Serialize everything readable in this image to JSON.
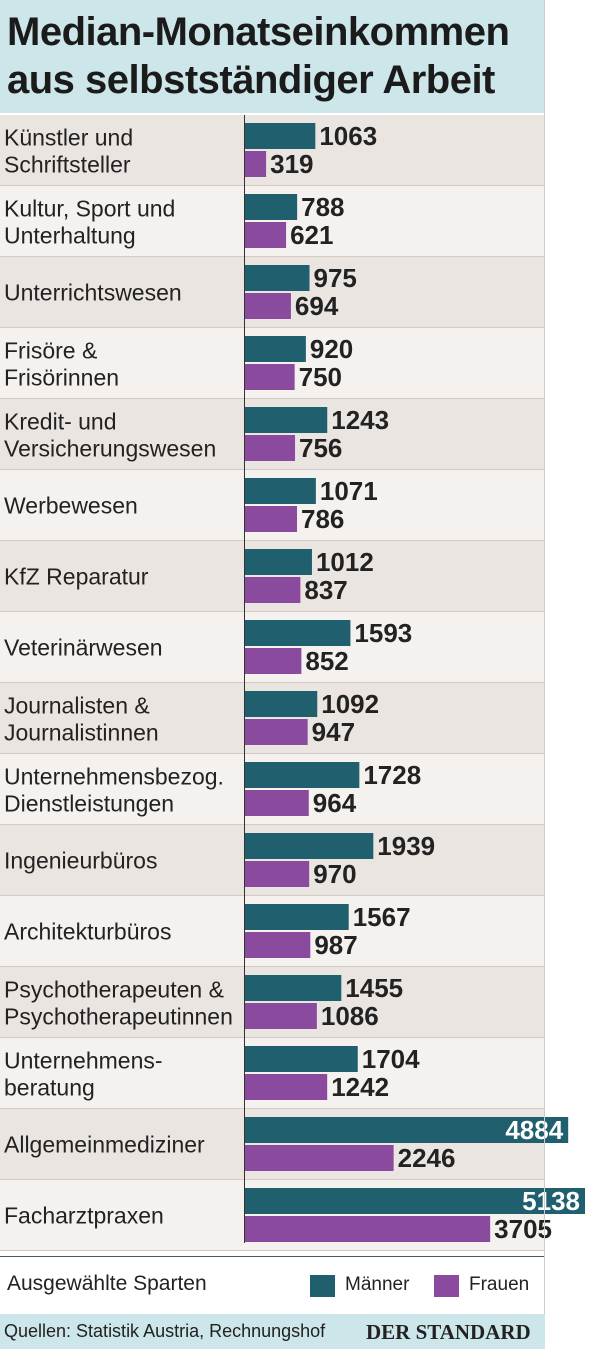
{
  "header": {
    "title_line1": "Median-Monatseinkommen",
    "title_line2": "aus selbstständiger Arbeit"
  },
  "legend": {
    "subtitle": "Ausgewählte Sparten",
    "maenner": "Männer",
    "frauen": "Frauen"
  },
  "footer": {
    "source": "Quellen: Statistik Austria, Rechnungshof",
    "brand": "DER STANDARD"
  },
  "colors": {
    "maenner": "#1f5f6e",
    "frauen": "#8a4b9e",
    "row_light": "#f5f1ee",
    "row_dark": "#ebe5e1",
    "title_bg": "#cde6ea"
  },
  "chart_data": {
    "type": "bar",
    "orientation": "horizontal",
    "categories": [
      [
        "Künstler und",
        "Schriftsteller"
      ],
      [
        "Kultur, Sport und",
        "Unterhaltung"
      ],
      [
        "Unterrichtswesen"
      ],
      [
        "Frisöre &",
        "Frisörinnen"
      ],
      [
        "Kredit- und",
        "Versicherungswesen"
      ],
      [
        "Werbewesen"
      ],
      [
        "KfZ Reparatur"
      ],
      [
        "Veterinärwesen"
      ],
      [
        "Journalisten &",
        "Journalistinnen"
      ],
      [
        "Unternehmensbezog.",
        "Dienstleistungen"
      ],
      [
        "Ingenieurbüros"
      ],
      [
        "Architekturbüros"
      ],
      [
        "Psychotherapeuten &",
        "Psychotherapeutinnen"
      ],
      [
        "Unternehmens-",
        "beratung"
      ],
      [
        "Allgemeinmediziner"
      ],
      [
        "Facharztpraxen"
      ]
    ],
    "series": [
      {
        "name": "Männer",
        "values": [
          1063,
          788,
          975,
          920,
          1243,
          1071,
          1012,
          1593,
          1092,
          1728,
          1939,
          1567,
          1455,
          1704,
          4884,
          5138
        ]
      },
      {
        "name": "Frauen",
        "values": [
          319,
          621,
          694,
          750,
          756,
          786,
          837,
          852,
          947,
          964,
          970,
          987,
          1086,
          1242,
          2246,
          3705
        ]
      }
    ],
    "xlim": [
      0,
      5138
    ],
    "grid": false,
    "legend_position": "bottom"
  }
}
